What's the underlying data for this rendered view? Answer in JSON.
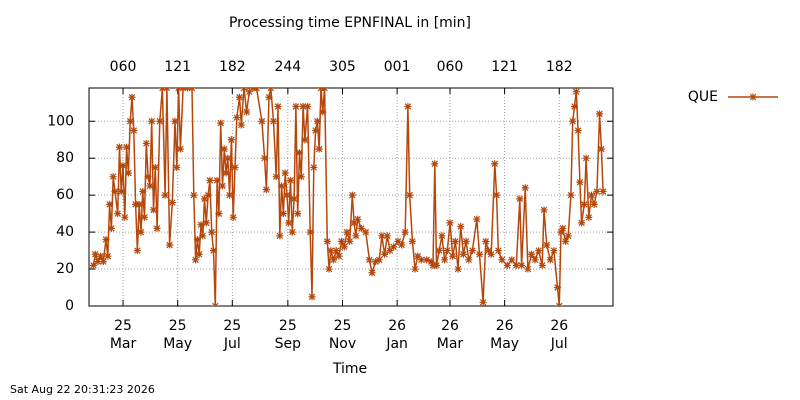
{
  "chart_data": {
    "type": "line",
    "title": "Processing time EPNFINAL in [min]",
    "xlabel": "Time",
    "footer": "Sat Aug 22 20:31:23 2026",
    "legend_position": "outside-top-right",
    "grid": true,
    "ylim": [
      0,
      118
    ],
    "yticks": [
      0,
      20,
      40,
      60,
      80,
      100
    ],
    "xlim": [
      "2025-01-22",
      "2026-08-30"
    ],
    "xticks": [
      {
        "value": "2025-03-01",
        "label": "25\nMar"
      },
      {
        "value": "2025-05-01",
        "label": "25\nMay"
      },
      {
        "value": "2025-07-01",
        "label": "25\nJul"
      },
      {
        "value": "2025-09-01",
        "label": "25\nSep"
      },
      {
        "value": "2025-11-01",
        "label": "25\nNov"
      },
      {
        "value": "2026-01-01",
        "label": "26\nJan"
      },
      {
        "value": "2026-03-01",
        "label": "26\nMar"
      },
      {
        "value": "2026-05-01",
        "label": "26\nMay"
      },
      {
        "value": "2026-07-01",
        "label": "26\nJul"
      }
    ],
    "x2ticks": [
      {
        "value": "2025-03-01",
        "label": "060"
      },
      {
        "value": "2025-05-01",
        "label": "121"
      },
      {
        "value": "2025-07-01",
        "label": "182"
      },
      {
        "value": "2025-09-01",
        "label": "244"
      },
      {
        "value": "2025-11-01",
        "label": "305"
      },
      {
        "value": "2026-01-01",
        "label": "001"
      },
      {
        "value": "2026-03-01",
        "label": "060"
      },
      {
        "value": "2026-05-01",
        "label": "121"
      },
      {
        "value": "2026-07-01",
        "label": "182"
      }
    ],
    "x": [
      "2025-01-27",
      "2025-01-29",
      "2025-02-01",
      "2025-02-04",
      "2025-02-07",
      "2025-02-10",
      "2025-02-12",
      "2025-02-14",
      "2025-02-16",
      "2025-02-18",
      "2025-02-20",
      "2025-02-23",
      "2025-02-25",
      "2025-02-27",
      "2025-03-01",
      "2025-03-03",
      "2025-03-05",
      "2025-03-07",
      "2025-03-09",
      "2025-03-11",
      "2025-03-13",
      "2025-03-15",
      "2025-03-17",
      "2025-03-19",
      "2025-03-21",
      "2025-03-23",
      "2025-03-25",
      "2025-03-27",
      "2025-03-29",
      "2025-03-31",
      "2025-04-02",
      "2025-04-04",
      "2025-04-06",
      "2025-04-08",
      "2025-04-11",
      "2025-04-14",
      "2025-04-17",
      "2025-04-19",
      "2025-04-22",
      "2025-04-25",
      "2025-04-28",
      "2025-04-30",
      "2025-05-02",
      "2025-05-04",
      "2025-05-07",
      "2025-05-12",
      "2025-05-17",
      "2025-05-19",
      "2025-05-21",
      "2025-05-23",
      "2025-05-25",
      "2025-05-27",
      "2025-05-29",
      "2025-05-31",
      "2025-06-02",
      "2025-06-04",
      "2025-06-06",
      "2025-06-08",
      "2025-06-10",
      "2025-06-12",
      "2025-06-14",
      "2025-06-16",
      "2025-06-18",
      "2025-06-20",
      "2025-06-22",
      "2025-06-24",
      "2025-06-26",
      "2025-06-28",
      "2025-06-30",
      "2025-07-02",
      "2025-07-04",
      "2025-07-06",
      "2025-07-09",
      "2025-07-11",
      "2025-07-14",
      "2025-07-17",
      "2025-07-20",
      "2025-07-24",
      "2025-07-28",
      "2025-08-03",
      "2025-08-06",
      "2025-08-08",
      "2025-08-11",
      "2025-08-13",
      "2025-08-16",
      "2025-08-19",
      "2025-08-21",
      "2025-08-23",
      "2025-08-25",
      "2025-08-27",
      "2025-08-29",
      "2025-08-31",
      "2025-09-02",
      "2025-09-04",
      "2025-09-06",
      "2025-09-08",
      "2025-09-10",
      "2025-09-12",
      "2025-09-14",
      "2025-09-16",
      "2025-09-18",
      "2025-09-20",
      "2025-09-23",
      "2025-09-26",
      "2025-09-28",
      "2025-09-30",
      "2025-10-02",
      "2025-10-04",
      "2025-10-06",
      "2025-10-08",
      "2025-10-10",
      "2025-10-12",
      "2025-10-15",
      "2025-10-17",
      "2025-10-19",
      "2025-10-22",
      "2025-10-25",
      "2025-10-28",
      "2025-10-31",
      "2025-11-03",
      "2025-11-06",
      "2025-11-09",
      "2025-11-12",
      "2025-11-14",
      "2025-11-16",
      "2025-11-18",
      "2025-11-22",
      "2025-11-27",
      "2025-12-01",
      "2025-12-04",
      "2025-12-08",
      "2025-12-12",
      "2025-12-15",
      "2025-12-18",
      "2025-12-21",
      "2025-12-24",
      "2025-12-28",
      "2026-01-02",
      "2026-01-06",
      "2026-01-10",
      "2026-01-13",
      "2026-01-15",
      "2026-01-18",
      "2026-01-21",
      "2026-01-24",
      "2026-01-28",
      "2026-02-03",
      "2026-02-08",
      "2026-02-10",
      "2026-02-12",
      "2026-02-14",
      "2026-02-17",
      "2026-02-20",
      "2026-02-23",
      "2026-02-26",
      "2026-03-01",
      "2026-03-04",
      "2026-03-07",
      "2026-03-10",
      "2026-03-13",
      "2026-03-16",
      "2026-03-19",
      "2026-03-22",
      "2026-03-26",
      "2026-03-31",
      "2026-04-03",
      "2026-04-07",
      "2026-04-10",
      "2026-04-13",
      "2026-04-16",
      "2026-04-20",
      "2026-04-22",
      "2026-04-24",
      "2026-04-28",
      "2026-05-04",
      "2026-05-09",
      "2026-05-14",
      "2026-05-18",
      "2026-05-20",
      "2026-05-24",
      "2026-05-27",
      "2026-05-31",
      "2026-06-04",
      "2026-06-08",
      "2026-06-12",
      "2026-06-14",
      "2026-06-17",
      "2026-06-21",
      "2026-06-25",
      "2026-06-29",
      "2026-07-01",
      "2026-07-03",
      "2026-07-05",
      "2026-07-08",
      "2026-07-11",
      "2026-07-14",
      "2026-07-16",
      "2026-07-18",
      "2026-07-20",
      "2026-07-22",
      "2026-07-24",
      "2026-07-26",
      "2026-07-29",
      "2026-07-31",
      "2026-08-03",
      "2026-08-06",
      "2026-08-09",
      "2026-08-12",
      "2026-08-15",
      "2026-08-17",
      "2026-08-19"
    ],
    "series": [
      {
        "name": "QUE",
        "color": "#b5470b",
        "values": [
          22,
          28,
          24,
          27,
          24,
          36,
          27,
          55,
          42,
          70,
          62,
          50,
          86,
          62,
          76,
          48,
          86,
          72,
          100,
          113,
          95,
          55,
          30,
          55,
          40,
          62,
          48,
          88,
          70,
          65,
          100,
          52,
          75,
          42,
          100,
          118,
          60,
          118,
          33,
          56,
          100,
          75,
          118,
          85,
          118,
          118,
          118,
          60,
          25,
          36,
          28,
          44,
          38,
          58,
          45,
          60,
          68,
          40,
          30,
          0,
          68,
          50,
          99,
          65,
          85,
          72,
          80,
          60,
          90,
          48,
          75,
          102,
          113,
          98,
          118,
          105,
          116,
          118,
          118,
          100,
          80,
          63,
          113,
          118,
          100,
          70,
          108,
          38,
          65,
          50,
          72,
          60,
          45,
          68,
          40,
          58,
          108,
          50,
          83,
          70,
          108,
          90,
          108,
          40,
          5,
          75,
          95,
          100,
          85,
          118,
          105,
          118,
          35,
          20,
          30,
          25,
          30,
          27,
          35,
          32,
          40,
          35,
          60,
          45,
          38,
          47,
          42,
          40,
          25,
          18,
          24,
          25,
          38,
          28,
          38,
          30,
          32,
          35,
          33,
          40,
          108,
          60,
          35,
          20,
          27,
          25,
          25,
          24,
          22,
          77,
          22,
          30,
          38,
          25,
          30,
          45,
          27,
          35,
          20,
          43,
          28,
          35,
          25,
          30,
          47,
          28,
          2,
          35,
          30,
          28,
          77,
          60,
          30,
          25,
          22,
          25,
          22,
          58,
          22,
          64,
          20,
          28,
          25,
          30,
          22,
          52,
          33,
          25,
          30,
          10,
          0,
          40,
          42,
          35,
          38,
          60,
          100,
          108,
          116,
          95,
          67,
          45,
          55,
          80,
          48,
          60,
          55,
          62,
          104,
          85,
          62
        ]
      }
    ]
  }
}
